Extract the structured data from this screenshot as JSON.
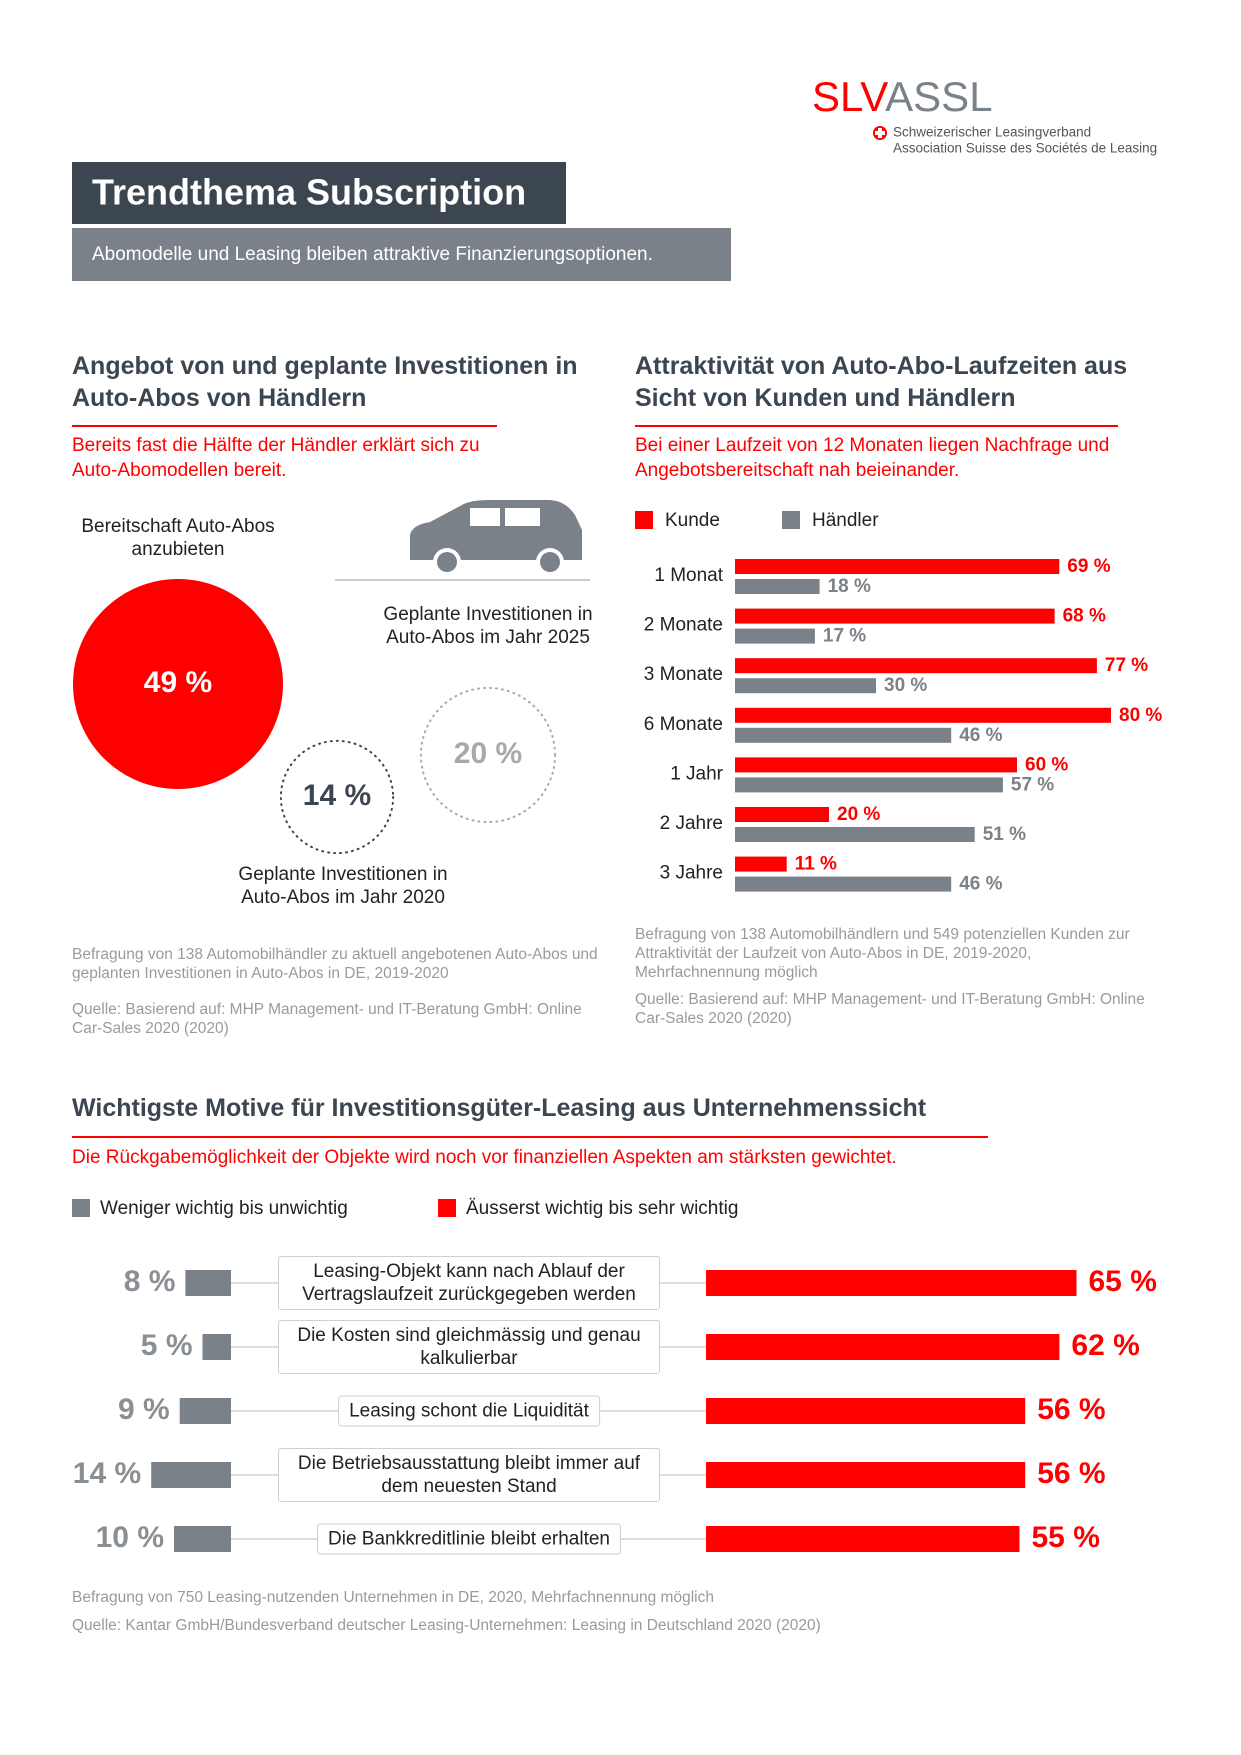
{
  "logo": {
    "left": "SLV",
    "right": "ASSL",
    "line1": "Schweizerischer Leasingverband",
    "line2": "Association Suisse des Sociétés de Leasing"
  },
  "header": {
    "title": "Trendthema Subscription",
    "subtitle": "Abomodelle und Leasing bleiben attraktive Finanzierungsoptionen."
  },
  "chart_data": [
    {
      "type": "circles",
      "title": "Angebot von und geplante Investitionen in Auto-Abos von Händlern",
      "subtitle": "Bereits fast die Hälfte der Händler erklärt sich zu Auto-Abomodellen bereit.",
      "categories": [
        "Bereitschaft Auto-Abos anzubieten",
        "Geplante Investitionen in Auto-Abos im Jahr 2025",
        "Geplante Investitionen in Auto-Abos im Jahr 2020"
      ],
      "values": [
        49,
        20,
        14
      ],
      "value_labels": [
        "49 %",
        "20 %",
        "14 %"
      ],
      "colors": [
        "#ff0000",
        "#a8a8a8",
        "#3c4650"
      ],
      "notes": [
        "Befragung von 138 Automobilhändler zu aktuell angebotenen Auto-Abos und geplanten Investitionen in Auto-Abos in DE, 2019-2020",
        "Quelle: Basierend auf: MHP Management- und IT-Beratung GmbH: Online Car-Sales 2020 (2020)"
      ]
    },
    {
      "type": "bar",
      "title": "Attraktivität von Auto-Abo-Laufzeiten aus Sicht von Kunden und Händlern",
      "subtitle": "Bei einer Laufzeit von 12 Monaten liegen Nachfrage und Angebotsbereitschaft nah beieinander.",
      "categories": [
        "1 Monat",
        "2 Monate",
        "3 Monate",
        "6 Monate",
        "1 Jahr",
        "2 Jahre",
        "3 Jahre"
      ],
      "series": [
        {
          "name": "Kunde",
          "color": "#ff0000",
          "values": [
            69,
            68,
            77,
            80,
            60,
            20,
            11
          ],
          "value_labels": [
            "69 %",
            "68 %",
            "77 %",
            "80 %",
            "60 %",
            "20 %",
            "11 %"
          ]
        },
        {
          "name": "Händler",
          "color": "#7b8188",
          "values": [
            18,
            17,
            30,
            46,
            57,
            51,
            46
          ],
          "value_labels": [
            "18 %",
            "17 %",
            "30 %",
            "46 %",
            "57 %",
            "51 %",
            "46 %"
          ]
        }
      ],
      "notes": [
        "Befragung von 138 Automobilhändlern und 549 potenziellen Kunden zur Attraktivität der Laufzeit von Auto-Abos in DE, 2019-2020, Mehrfachnennung möglich",
        "Quelle: Basierend auf: MHP Management- und IT-Beratung GmbH: Online Car-Sales 2020 (2020)"
      ]
    },
    {
      "type": "diverging_bar",
      "title": "Wichtigste Motive für Investitionsgüter-Leasing aus Unternehmenssicht",
      "subtitle": "Die Rückgabemöglichkeit der Objekte wird noch vor finanziellen Aspekten am stärksten gewichtet.",
      "categories": [
        "Leasing-Objekt kann nach Ablauf der Vertragslaufzeit zurückgegeben werden",
        "Die Kosten sind gleichmässig und genau kalkulierbar",
        "Leasing schont die Liquidität",
        "Die Betriebsausstattung bleibt immer auf dem neuesten Stand",
        "Die Bankkreditlinie bleibt erhalten"
      ],
      "series": [
        {
          "name": "Weniger wichtig bis unwichtig",
          "color": "#7b8188",
          "values": [
            8,
            5,
            9,
            14,
            10
          ],
          "value_labels": [
            "8 %",
            "5 %",
            "9 %",
            "14 %",
            "10 %"
          ]
        },
        {
          "name": "Äusserst wichtig bis sehr wichtig",
          "color": "#ff0000",
          "values": [
            65,
            62,
            56,
            56,
            55
          ],
          "value_labels": [
            "65 %",
            "62 %",
            "56 %",
            "56 %",
            "55 %"
          ]
        }
      ],
      "notes": [
        "Befragung von 750 Leasing-nutzenden Unternehmen in DE, 2020, Mehrfachnennung möglich",
        "Quelle: Kantar GmbH/Bundesverband deutscher Leasing-Unternehmen: Leasing in Deutschland 2020 (2020)"
      ]
    }
  ]
}
